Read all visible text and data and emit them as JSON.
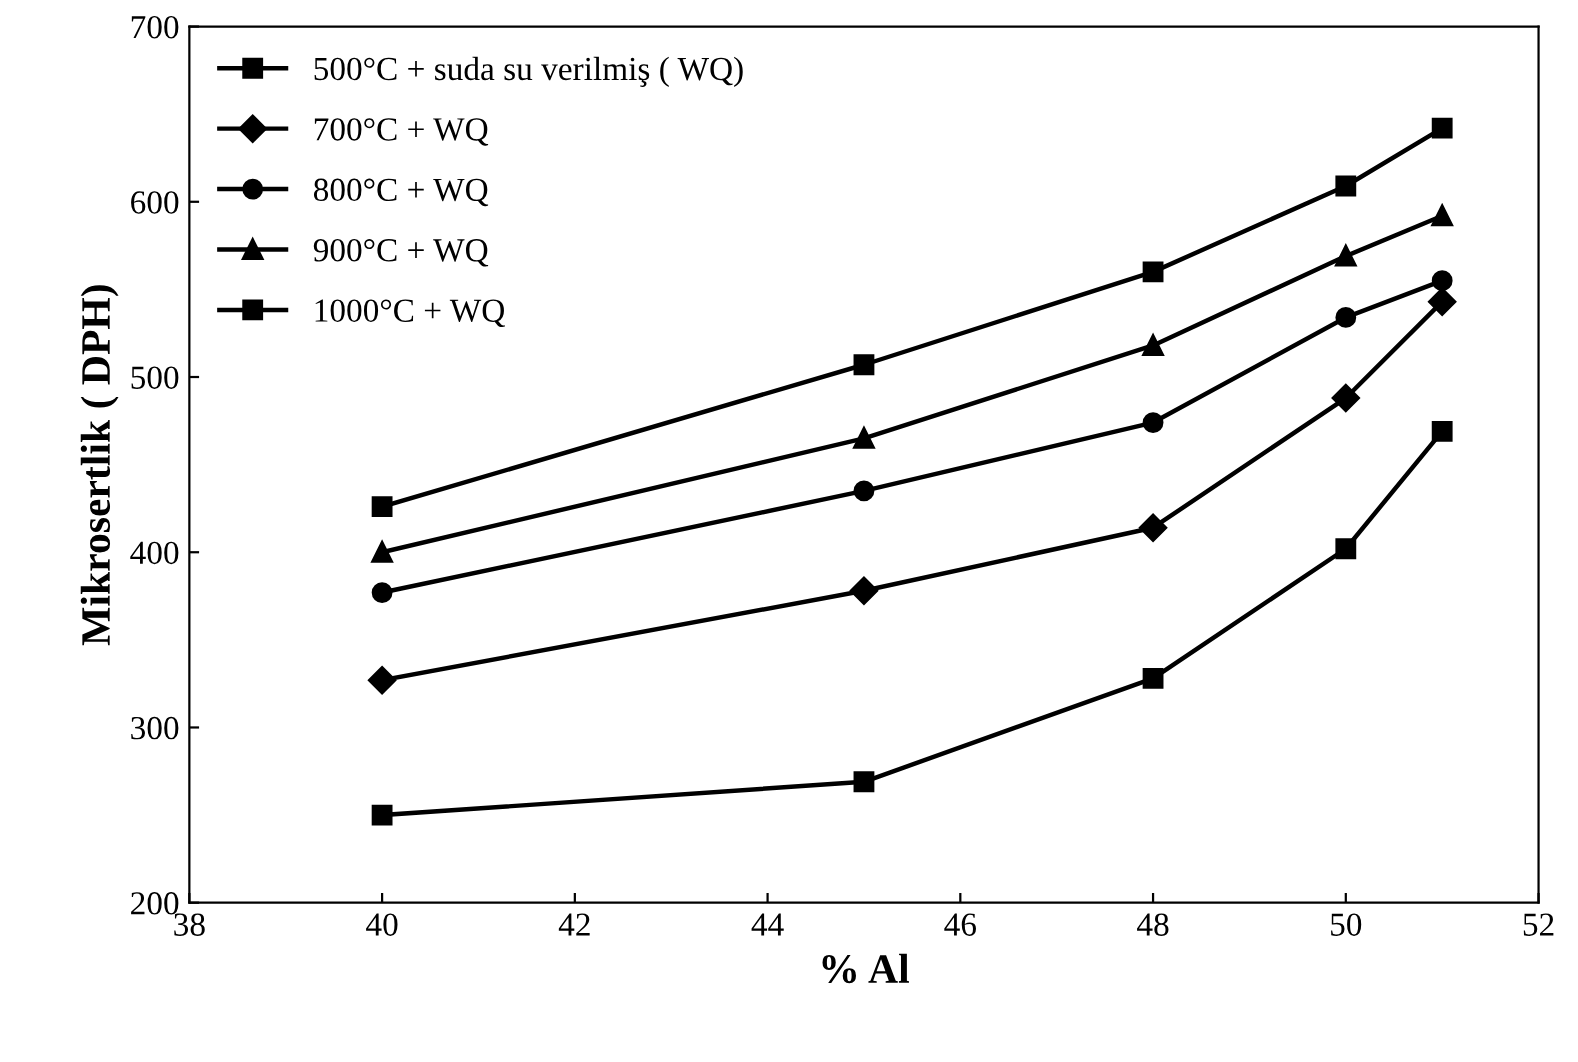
{
  "chart_data": {
    "type": "line",
    "xlabel": "% Al",
    "ylabel": "Mikrosertlik ( DPH)",
    "x": [
      40,
      45,
      48,
      50,
      51
    ],
    "series": [
      {
        "name": "500°C + suda su verilmiş ( WQ)",
        "color": "#000000",
        "marker": "square",
        "values": [
          250,
          269,
          328,
          402,
          469
        ]
      },
      {
        "name": "700°C + WQ",
        "color": "#000000",
        "marker": "diamond",
        "values": [
          327,
          378,
          414,
          488,
          543
        ]
      },
      {
        "name": "800°C + WQ",
        "color": "#000000",
        "marker": "circle",
        "values": [
          377,
          435,
          474,
          534,
          555
        ]
      },
      {
        "name": "900°C + WQ",
        "color": "#000000",
        "marker": "triangle",
        "values": [
          400,
          465,
          518,
          569,
          592
        ]
      },
      {
        "name": "1000°C + WQ",
        "color": "#000000",
        "marker": "square",
        "values": [
          426,
          507,
          560,
          609,
          642
        ]
      }
    ],
    "xlim": [
      38,
      52
    ],
    "xticks": [
      38,
      40,
      42,
      44,
      46,
      48,
      50,
      52
    ],
    "ylim": [
      200,
      700
    ],
    "yticks": [
      200,
      300,
      400,
      500,
      600,
      700
    ],
    "grid": false,
    "legend": "top left",
    "line_style": "solid"
  }
}
